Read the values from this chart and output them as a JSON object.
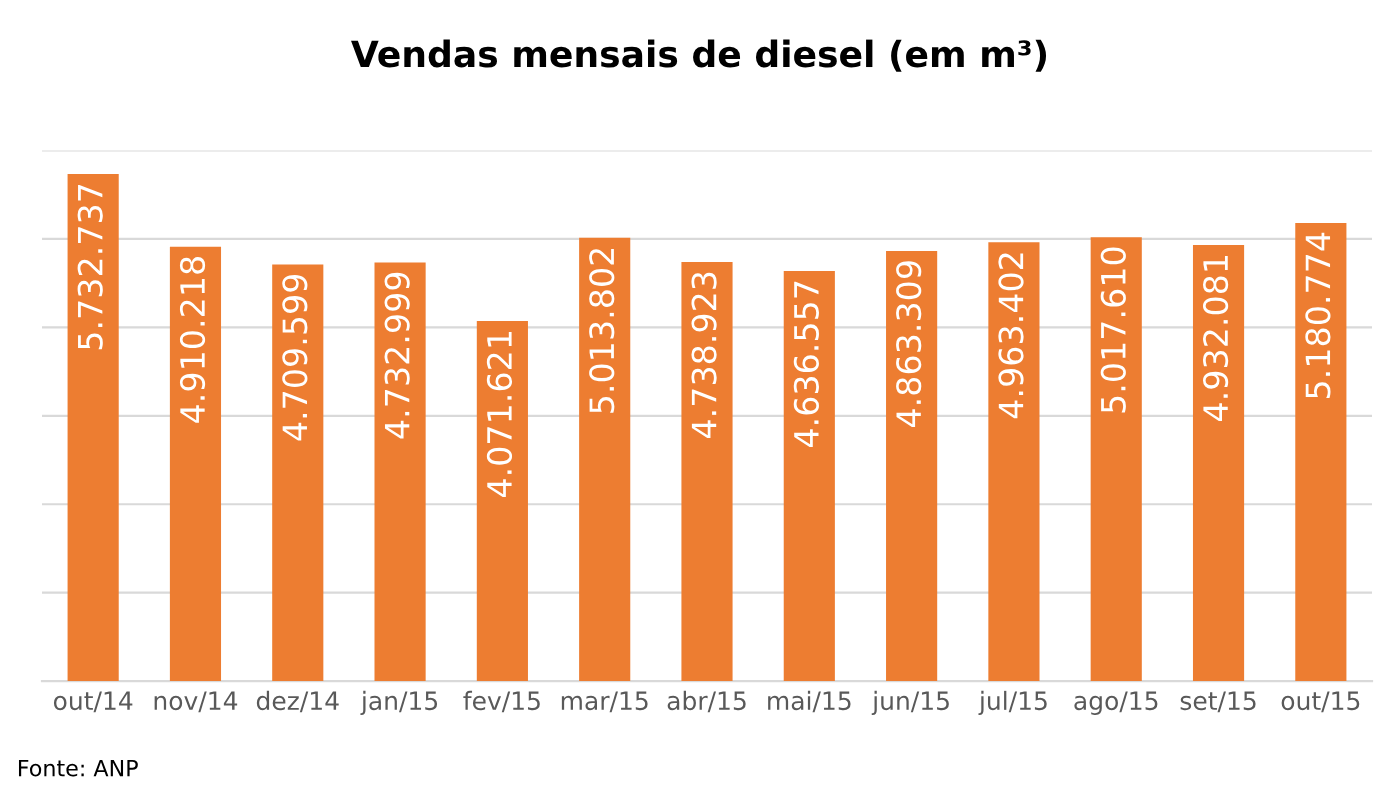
{
  "chart_data": {
    "type": "bar",
    "title": "Vendas mensais de diesel (em m³)",
    "categories": [
      "out/14",
      "nov/14",
      "dez/14",
      "jan/15",
      "fev/15",
      "mar/15",
      "abr/15",
      "mai/15",
      "jun/15",
      "jul/15",
      "ago/15",
      "set/15",
      "out/15"
    ],
    "values": [
      5732737,
      4910218,
      4709599,
      4732999,
      4071621,
      5013802,
      4738923,
      4636557,
      4863309,
      4963402,
      5017610,
      4932081,
      5180774
    ],
    "value_labels": [
      "5.732.737",
      "4.910.218",
      "4.709.599",
      "4.732.999",
      "4.071.621",
      "5.013.802",
      "4.738.923",
      "4.636.557",
      "4.863.309",
      "4.963.402",
      "5.017.610",
      "4.932.081",
      "5.180.774"
    ],
    "color": "#ed7d31",
    "ylim": [
      0,
      6000000
    ],
    "yticks": [
      {
        "value": 0,
        "label": null
      },
      {
        "value": 1000000,
        "label": null
      },
      {
        "value": 2000000,
        "label": null
      },
      {
        "value": 3000000,
        "label": null
      },
      {
        "value": 4000000,
        "label": null
      },
      {
        "value": 5000000,
        "label": null
      },
      {
        "value": 6000000,
        "label": null
      }
    ],
    "grid": "y",
    "tick_labels": "x",
    "annotations": [
      "Fonte: ANP"
    ]
  }
}
